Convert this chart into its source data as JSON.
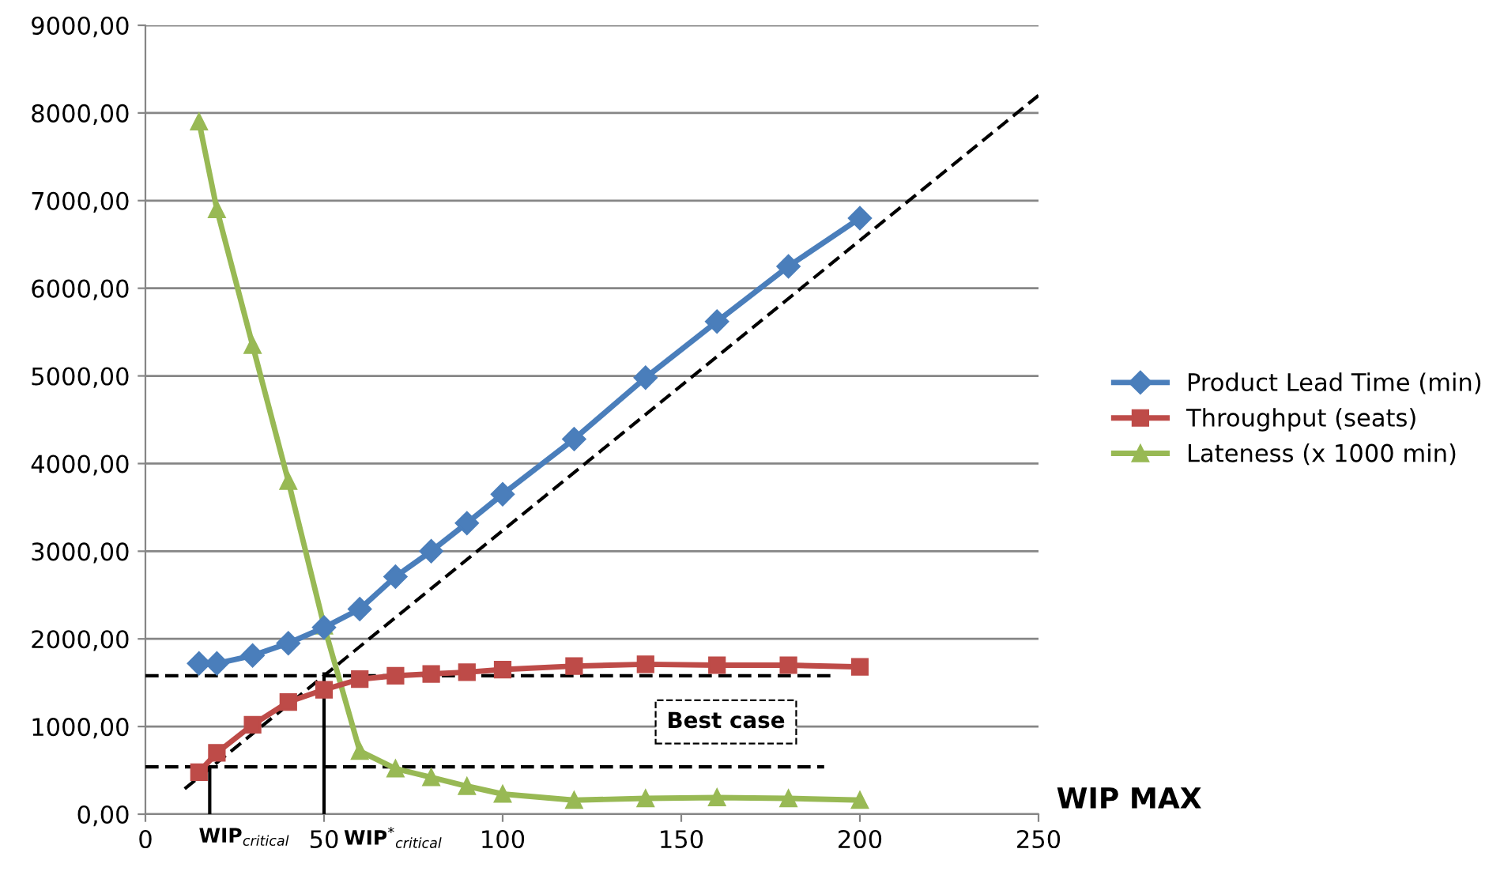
{
  "chart_data": {
    "type": "line",
    "xlabel": "WIP MAX",
    "x": [
      15,
      20,
      30,
      40,
      50,
      60,
      70,
      80,
      90,
      100,
      120,
      140,
      160,
      180,
      200
    ],
    "series": [
      {
        "name": "Product Lead Time (min)",
        "color": "#4a7ebb",
        "marker": "diamond",
        "values": [
          1720,
          1720,
          1810,
          1950,
          2130,
          2340,
          2710,
          3000,
          3320,
          3650,
          4280,
          4980,
          5620,
          6250,
          6800
        ]
      },
      {
        "name": "Throughput (seats)",
        "color": "#be4b48",
        "marker": "square",
        "values": [
          480,
          700,
          1020,
          1280,
          1420,
          1540,
          1580,
          1600,
          1620,
          1650,
          1690,
          1710,
          1700,
          1700,
          1680
        ]
      },
      {
        "name": "Lateness (x 1000 min)",
        "color": "#98b954",
        "marker": "triangle",
        "values": [
          7900,
          6900,
          5350,
          3800,
          2150,
          720,
          520,
          420,
          320,
          230,
          160,
          180,
          190,
          180,
          160
        ]
      },
      {
        "color": "#000000",
        "marker": "none",
        "line_style": "dashed",
        "x": [
          11,
          250
        ],
        "values": [
          290,
          8200
        ]
      },
      {
        "color": "#000000",
        "marker": "none",
        "line_style": "dashed",
        "x": [
          0,
          192
        ],
        "values": [
          1580,
          1580
        ]
      },
      {
        "color": "#000000",
        "marker": "none",
        "line_style": "dashed",
        "x": [
          0,
          190
        ],
        "values": [
          540,
          540
        ]
      },
      {
        "color": "#000000",
        "marker": "none",
        "line_style": "solid",
        "x": [
          18,
          18
        ],
        "values": [
          0,
          540
        ]
      },
      {
        "color": "#000000",
        "marker": "none",
        "line_style": "solid",
        "x": [
          50,
          50
        ],
        "values": [
          0,
          1600
        ]
      }
    ],
    "annotations": [
      {
        "text": "WIP$_{critical}$",
        "x": 18,
        "y": 0
      },
      {
        "text": "WIP$^{*}$$_{critical}$",
        "x": 50,
        "y": 0
      },
      "Best case"
    ],
    "xlim": [
      0,
      250
    ],
    "xticks": [
      0,
      50,
      100,
      150,
      200,
      250
    ],
    "ylim": [
      0,
      9000
    ],
    "yticks": [
      {
        "value": 0,
        "label": "0,00"
      },
      {
        "value": 1000,
        "label": "1000,00"
      },
      {
        "value": 2000,
        "label": "2000,00"
      },
      {
        "value": 3000,
        "label": "3000,00"
      },
      {
        "value": 4000,
        "label": "4000,00"
      },
      {
        "value": 5000,
        "label": "5000,00"
      },
      {
        "value": 6000,
        "label": "6000,00"
      },
      {
        "value": 7000,
        "label": "7000,00"
      },
      {
        "value": 8000,
        "label": "8000,00"
      },
      {
        "value": 9000,
        "label": "9000,00"
      }
    ],
    "grid": "y",
    "legend": "right"
  }
}
